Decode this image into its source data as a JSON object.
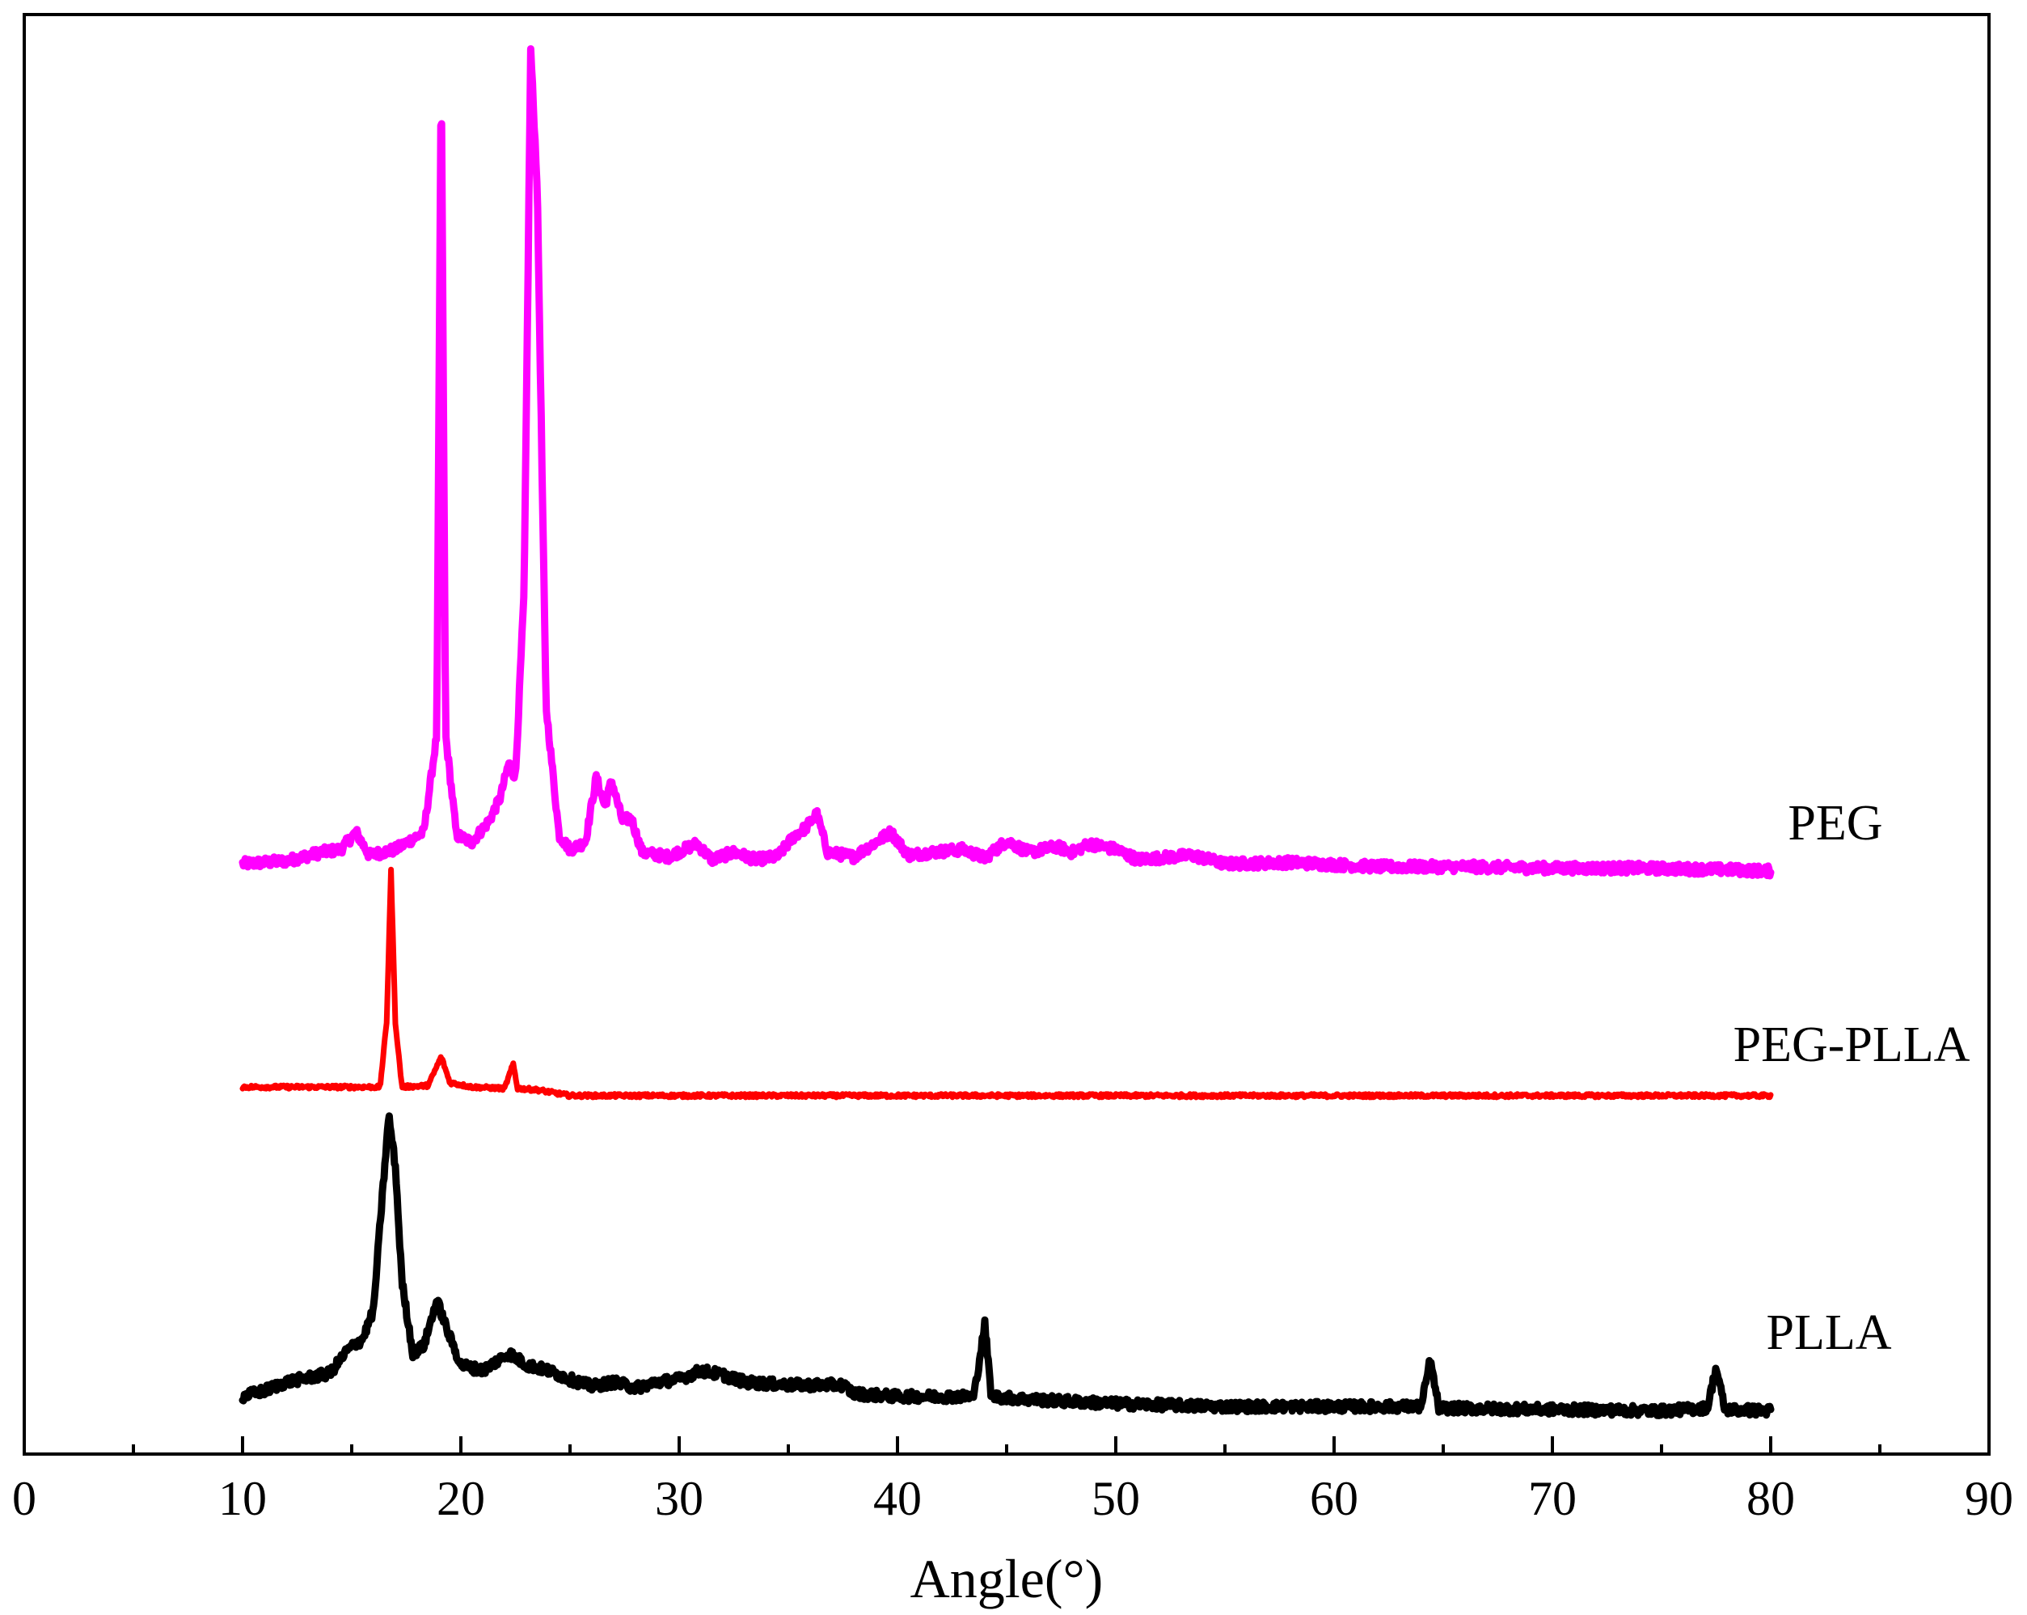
{
  "chart_data": {
    "type": "line",
    "title": "",
    "xlabel": "Angle(°)",
    "ylabel": "",
    "xlim": [
      0,
      90
    ],
    "ylim": [
      0,
      1
    ],
    "x_ticks": [
      0,
      10,
      20,
      30,
      40,
      50,
      60,
      70,
      80,
      90
    ],
    "x_tick_labels": [
      "0",
      "10",
      "20",
      "30",
      "40",
      "50",
      "60",
      "70",
      "80",
      "90"
    ],
    "y_ticks_shown": false,
    "grid": false,
    "series": [
      {
        "name": "PEG",
        "label": "PEG",
        "color": "#ff00ff",
        "baseline": 0.41,
        "baseline_end": 0.405,
        "points": [
          [
            10,
            0.41
          ],
          [
            12,
            0.412
          ],
          [
            13.6,
            0.418
          ],
          [
            14.5,
            0.42
          ],
          [
            15.2,
            0.432
          ],
          [
            15.8,
            0.416
          ],
          [
            17,
            0.42
          ],
          [
            18.3,
            0.432
          ],
          [
            18.9,
            0.5
          ],
          [
            19.1,
            0.97
          ],
          [
            19.3,
            0.5
          ],
          [
            19.8,
            0.43
          ],
          [
            20.5,
            0.425
          ],
          [
            21.3,
            0.44
          ],
          [
            21.8,
            0.456
          ],
          [
            22.2,
            0.48
          ],
          [
            22.5,
            0.47
          ],
          [
            22.9,
            0.6
          ],
          [
            23.2,
            0.975
          ],
          [
            23.5,
            0.88
          ],
          [
            23.9,
            0.52
          ],
          [
            24.5,
            0.43
          ],
          [
            25,
            0.42
          ],
          [
            25.7,
            0.425
          ],
          [
            26.2,
            0.47
          ],
          [
            26.6,
            0.45
          ],
          [
            26.9,
            0.468
          ],
          [
            27.4,
            0.44
          ],
          [
            27.8,
            0.442
          ],
          [
            28.3,
            0.418
          ],
          [
            29.5,
            0.415
          ],
          [
            30.8,
            0.424
          ],
          [
            31.5,
            0.413
          ],
          [
            32.5,
            0.418
          ],
          [
            33.5,
            0.413
          ],
          [
            34.5,
            0.415
          ],
          [
            35.3,
            0.43
          ],
          [
            35.8,
            0.435
          ],
          [
            36.3,
            0.445
          ],
          [
            36.8,
            0.418
          ],
          [
            38,
            0.415
          ],
          [
            39.7,
            0.432
          ],
          [
            40.5,
            0.416
          ],
          [
            41.5,
            0.418
          ],
          [
            43,
            0.42
          ],
          [
            44,
            0.414
          ],
          [
            45,
            0.426
          ],
          [
            46,
            0.418
          ],
          [
            47.3,
            0.422
          ],
          [
            48,
            0.418
          ],
          [
            48.8,
            0.424
          ],
          [
            50,
            0.42
          ],
          [
            51,
            0.413
          ],
          [
            53.5,
            0.416
          ],
          [
            55,
            0.41
          ],
          [
            58,
            0.411
          ],
          [
            62,
            0.408
          ],
          [
            66,
            0.408
          ],
          [
            70,
            0.407
          ],
          [
            74,
            0.407
          ],
          [
            78,
            0.406
          ],
          [
            80,
            0.405
          ]
        ]
      },
      {
        "name": "PEG-PLLA",
        "label": "PEG-PLLA",
        "color": "#ff0000",
        "baseline": 0.255,
        "baseline_end": 0.249,
        "points": [
          [
            10,
            0.255
          ],
          [
            16.3,
            0.255
          ],
          [
            16.6,
            0.3
          ],
          [
            16.8,
            0.405
          ],
          [
            17.0,
            0.3
          ],
          [
            17.3,
            0.255
          ],
          [
            18.5,
            0.256
          ],
          [
            19.1,
            0.276
          ],
          [
            19.5,
            0.258
          ],
          [
            20.5,
            0.255
          ],
          [
            22.0,
            0.254
          ],
          [
            22.4,
            0.271
          ],
          [
            22.6,
            0.254
          ],
          [
            23.5,
            0.253
          ],
          [
            25,
            0.249
          ],
          [
            30,
            0.249
          ],
          [
            40,
            0.249
          ],
          [
            50,
            0.249
          ],
          [
            60,
            0.249
          ],
          [
            70,
            0.249
          ],
          [
            80,
            0.249
          ]
        ]
      },
      {
        "name": "PLLA",
        "label": "PLLA",
        "color": "#000000",
        "baseline": 0.04,
        "baseline_end": 0.03,
        "points": [
          [
            10,
            0.04
          ],
          [
            11,
            0.044
          ],
          [
            12,
            0.05
          ],
          [
            13,
            0.053
          ],
          [
            14,
            0.056
          ],
          [
            14.8,
            0.072
          ],
          [
            15.5,
            0.08
          ],
          [
            16.0,
            0.1
          ],
          [
            16.3,
            0.16
          ],
          [
            16.7,
            0.235
          ],
          [
            17.0,
            0.2
          ],
          [
            17.3,
            0.12
          ],
          [
            17.8,
            0.07
          ],
          [
            18.3,
            0.075
          ],
          [
            18.9,
            0.107
          ],
          [
            19.4,
            0.085
          ],
          [
            20,
            0.062
          ],
          [
            21,
            0.058
          ],
          [
            22.2,
            0.07
          ],
          [
            23,
            0.062
          ],
          [
            24,
            0.058
          ],
          [
            25,
            0.052
          ],
          [
            26,
            0.047
          ],
          [
            27,
            0.05
          ],
          [
            28,
            0.046
          ],
          [
            29,
            0.05
          ],
          [
            30,
            0.052
          ],
          [
            31,
            0.058
          ],
          [
            32,
            0.055
          ],
          [
            33,
            0.05
          ],
          [
            35,
            0.048
          ],
          [
            37.5,
            0.048
          ],
          [
            38,
            0.042
          ],
          [
            40,
            0.04
          ],
          [
            42,
            0.04
          ],
          [
            43.5,
            0.04
          ],
          [
            44.0,
            0.09
          ],
          [
            44.3,
            0.04
          ],
          [
            46,
            0.038
          ],
          [
            50,
            0.035
          ],
          [
            55,
            0.033
          ],
          [
            60,
            0.033
          ],
          [
            64.0,
            0.033
          ],
          [
            64.4,
            0.065
          ],
          [
            64.8,
            0.032
          ],
          [
            70,
            0.031
          ],
          [
            75,
            0.03
          ],
          [
            77.1,
            0.032
          ],
          [
            77.5,
            0.06
          ],
          [
            77.9,
            0.031
          ],
          [
            80,
            0.03
          ]
        ]
      }
    ],
    "annotations": [
      "PEG",
      "PEG-PLLA",
      "PLLA"
    ]
  }
}
